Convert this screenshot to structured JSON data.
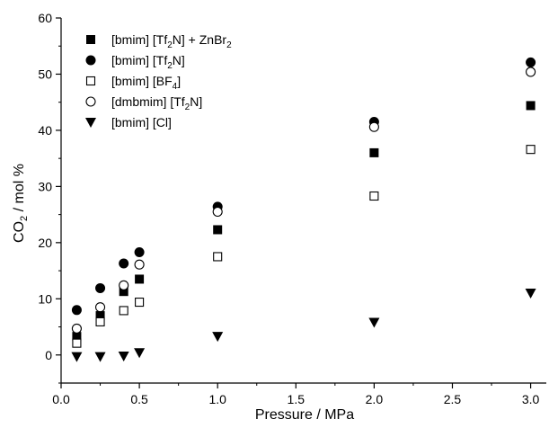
{
  "chart_data": {
    "type": "scatter",
    "xlabel": "Pressure / MPa",
    "ylabel_parts": {
      "main": "CO",
      "sub": "2",
      "rest": " / mol %"
    },
    "xlim": [
      0.0,
      3.1
    ],
    "ylim": [
      -5,
      60
    ],
    "xticks": [
      "0.0",
      "0.5",
      "1.0",
      "1.5",
      "2.0",
      "2.5",
      "3.0"
    ],
    "yticks": [
      "0",
      "10",
      "20",
      "30",
      "40",
      "50",
      "60"
    ],
    "grid": false,
    "legend_placement": "top-left",
    "series": [
      {
        "name_parts": [
          [
            "[bmim] [Tf",
            ""
          ],
          [
            "2",
            "sub"
          ],
          [
            "N] + ZnBr",
            ""
          ],
          [
            "2",
            "sub"
          ]
        ],
        "marker": "square-filled",
        "x": [
          0.1,
          0.25,
          0.4,
          0.5,
          1.0,
          2.0,
          3.0
        ],
        "y": [
          3.3,
          7.0,
          11.3,
          13.5,
          22.3,
          36.0,
          44.4
        ]
      },
      {
        "name_parts": [
          [
            "[bmim] [Tf",
            ""
          ],
          [
            "2",
            "sub"
          ],
          [
            "N]",
            ""
          ]
        ],
        "marker": "circle-filled",
        "x": [
          0.1,
          0.25,
          0.4,
          0.5,
          1.0,
          2.0,
          3.0
        ],
        "y": [
          8.0,
          11.9,
          16.3,
          18.3,
          26.4,
          41.5,
          52.1
        ]
      },
      {
        "name_parts": [
          [
            "[bmim] [BF",
            ""
          ],
          [
            "4",
            "sub"
          ],
          [
            "]",
            ""
          ]
        ],
        "marker": "square-open",
        "x": [
          0.1,
          0.25,
          0.4,
          0.5,
          1.0,
          2.0,
          3.0
        ],
        "y": [
          2.1,
          5.9,
          7.9,
          9.4,
          17.5,
          28.3,
          36.6
        ]
      },
      {
        "name_parts": [
          [
            "[dmbmim] [Tf",
            ""
          ],
          [
            "2",
            "sub"
          ],
          [
            "N]",
            ""
          ]
        ],
        "marker": "circle-open",
        "x": [
          0.1,
          0.25,
          0.4,
          0.5,
          1.0,
          2.0,
          3.0
        ],
        "y": [
          4.7,
          8.5,
          12.4,
          16.1,
          25.5,
          40.6,
          50.4
        ]
      },
      {
        "name_parts": [
          [
            "[bmim] [Cl]",
            ""
          ]
        ],
        "marker": "triangle-down-filled",
        "x": [
          0.1,
          0.25,
          0.4,
          0.5,
          1.0,
          2.0,
          3.0
        ],
        "y": [
          -0.3,
          -0.3,
          -0.2,
          0.4,
          3.3,
          5.8,
          11.0
        ]
      }
    ]
  }
}
